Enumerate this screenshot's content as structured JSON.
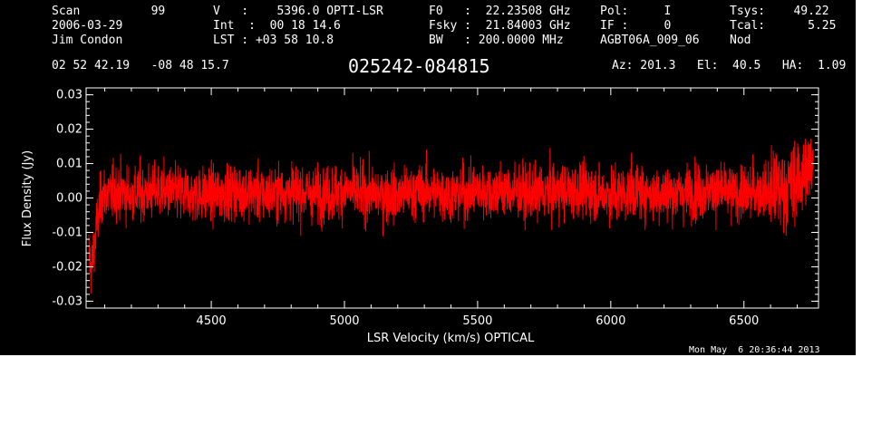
{
  "header": {
    "col1": [
      "Scan          99",
      "2006-03-29",
      "Jim Condon"
    ],
    "col2": [
      "V   :    5396.0 OPTI-LSR",
      "Int  :  00 18 14.6",
      "LST : +03 58 10.8"
    ],
    "col3": [
      "F0   :  22.23508 GHz",
      "Fsky :  21.84003 GHz",
      "BW   : 200.0000 MHz"
    ],
    "col4": [
      "Pol:     I",
      "IF :     0",
      "AGBT06A_009_06"
    ],
    "col5": [
      "Tsys:    49.22",
      "Tcal:      5.25",
      "Nod"
    ]
  },
  "coords": "02 52 42.19   -08 48 15.7",
  "source": "025242-084815",
  "pointing": "Az: 201.3   El:  40.5   HA:  1.09",
  "timestamp": "Mon May  6 20:36:44 2013",
  "colors": {
    "background": "#000000",
    "trace": "#ff0000",
    "axes": "#ffffff"
  },
  "chart_data": {
    "type": "line",
    "xlabel": "LSR Velocity (km/s) OPTICAL",
    "ylabel": "Flux Density (Jy)",
    "xlim": [
      4030,
      6780
    ],
    "ylim": [
      -0.032,
      0.032
    ],
    "x_ticks": [
      4500,
      5000,
      5500,
      6000,
      6500
    ],
    "y_ticks": [
      -0.03,
      -0.02,
      -0.01,
      0.0,
      0.01,
      0.02,
      0.03
    ],
    "y_tick_labels": [
      "-0.03",
      "-0.02",
      "-0.01",
      "0.00",
      "0.01",
      "0.02",
      "0.03"
    ],
    "grid": false,
    "series": [
      {
        "x": [
          4040,
          4050,
          4060,
          4070,
          4080,
          4090,
          4100,
          4150,
          4200,
          4300,
          4400,
          4500,
          4600,
          4700,
          4800,
          4900,
          5000,
          5100,
          5200,
          5300,
          5400,
          5500,
          5600,
          5700,
          5800,
          5900,
          6000,
          6100,
          6200,
          6300,
          6400,
          6500,
          6550,
          6600,
          6650,
          6680,
          6700,
          6720,
          6740,
          6760
        ],
        "y": [
          -0.016,
          -0.021,
          -0.014,
          -0.008,
          -0.003,
          0.001,
          0.001,
          0.002,
          0.001,
          0.002,
          0.001,
          0.001,
          0.002,
          0.001,
          0.002,
          0.001,
          0.002,
          0.001,
          0.001,
          0.002,
          0.001,
          0.002,
          0.002,
          0.001,
          0.002,
          0.002,
          0.001,
          0.002,
          0.001,
          0.002,
          0.002,
          0.001,
          0.002,
          0.002,
          0.003,
          0.004,
          0.005,
          0.006,
          0.008,
          0.012
        ],
        "noise_rms_jy": 0.004
      }
    ]
  }
}
